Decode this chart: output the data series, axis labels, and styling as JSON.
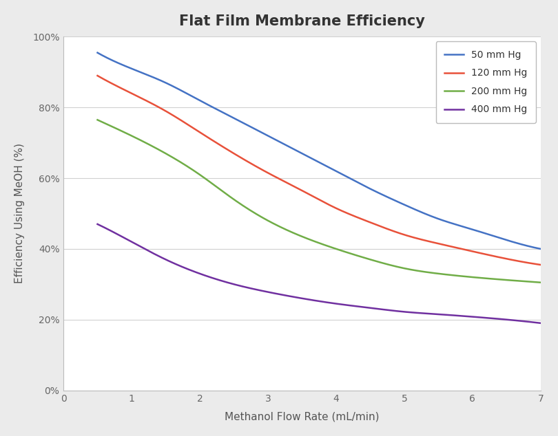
{
  "title": "Flat Film Membrane Efficiency",
  "xlabel": "Methanol Flow Rate (mL/min)",
  "ylabel": "Efficiency Using MeOH (%)",
  "xlim": [
    0,
    7
  ],
  "ylim": [
    0,
    1.0
  ],
  "fig_bg": "#ebebeb",
  "plot_bg": "#ffffff",
  "series": [
    {
      "label": "50 mm Hg",
      "color": "#4472c4",
      "x_points": [
        0.5,
        1.0,
        1.5,
        2.0,
        2.5,
        3.0,
        3.5,
        4.0,
        4.5,
        5.0,
        5.5,
        6.0,
        6.5,
        7.0
      ],
      "y_points": [
        0.955,
        0.91,
        0.87,
        0.82,
        0.77,
        0.72,
        0.67,
        0.62,
        0.57,
        0.525,
        0.485,
        0.455,
        0.425,
        0.4
      ]
    },
    {
      "label": "120 mm Hg",
      "color": "#e8513a",
      "x_points": [
        0.5,
        1.0,
        1.5,
        2.0,
        2.5,
        3.0,
        3.5,
        4.0,
        4.5,
        5.0,
        5.5,
        6.0,
        6.5,
        7.0
      ],
      "y_points": [
        0.89,
        0.84,
        0.79,
        0.73,
        0.67,
        0.615,
        0.565,
        0.515,
        0.475,
        0.44,
        0.415,
        0.393,
        0.372,
        0.355
      ]
    },
    {
      "label": "200 mm Hg",
      "color": "#70ad47",
      "x_points": [
        0.5,
        1.0,
        1.5,
        2.0,
        2.5,
        3.0,
        3.5,
        4.0,
        4.5,
        5.0,
        5.5,
        6.0,
        6.5,
        7.0
      ],
      "y_points": [
        0.765,
        0.72,
        0.67,
        0.61,
        0.54,
        0.48,
        0.435,
        0.4,
        0.37,
        0.345,
        0.33,
        0.32,
        0.312,
        0.305
      ]
    },
    {
      "label": "400 mm Hg",
      "color": "#7030a0",
      "x_points": [
        0.5,
        1.0,
        1.5,
        2.0,
        2.5,
        3.0,
        3.5,
        4.0,
        4.5,
        5.0,
        5.5,
        6.0,
        6.5,
        7.0
      ],
      "y_points": [
        0.47,
        0.42,
        0.37,
        0.33,
        0.3,
        0.278,
        0.26,
        0.245,
        0.233,
        0.222,
        0.215,
        0.208,
        0.2,
        0.19
      ]
    }
  ],
  "title_fontsize": 15,
  "axis_label_fontsize": 11,
  "tick_fontsize": 10,
  "legend_fontsize": 10,
  "line_width": 1.8,
  "grid_color": "#d0d0d0",
  "spine_color": "#bbbbbb",
  "tick_color": "#666666",
  "label_color": "#555555",
  "title_color": "#333333"
}
